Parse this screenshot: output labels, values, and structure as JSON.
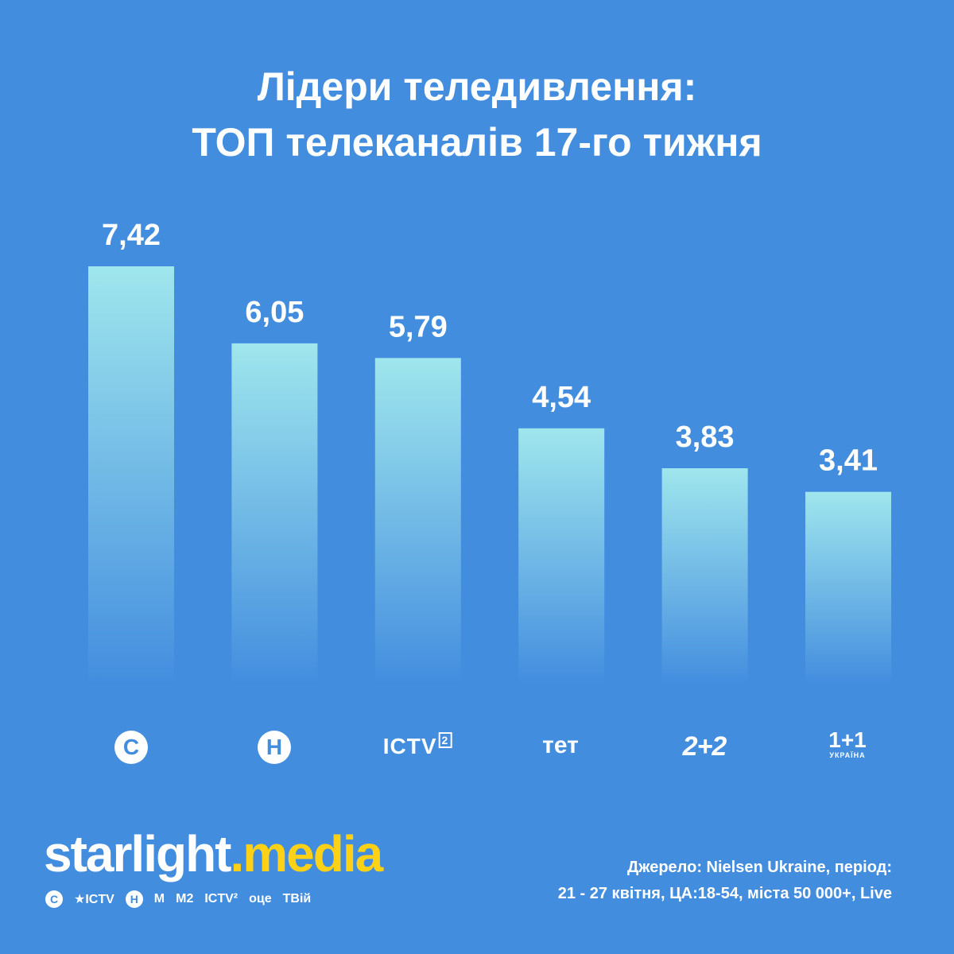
{
  "title": {
    "line1": "Лідери теледивлення:",
    "line2": "ТОП телеканалів 17-го тижня"
  },
  "chart_data": {
    "type": "bar",
    "categories": [
      "СТБ",
      "Новий канал",
      "ICTV2",
      "ТЕТ",
      "2+2",
      "1+1 Україна"
    ],
    "values": [
      7.42,
      6.05,
      5.79,
      4.54,
      3.83,
      3.41
    ],
    "value_labels": [
      "7,42",
      "6,05",
      "5,79",
      "4,54",
      "3,83",
      "3,41"
    ],
    "bar_gradient": [
      "#9fe6ed",
      "#438ddf"
    ],
    "ylim": [
      0,
      7.42
    ],
    "grid": false,
    "legend": "none"
  },
  "logos": {
    "c_glyph": "C",
    "h_glyph": "Н",
    "ictv": "ICTV",
    "ictv_sup": "2",
    "tet": "тет",
    "two_plus_two": "2+2",
    "one_plus_one": "1+1",
    "one_plus_one_sub": "УКРАЇНА"
  },
  "brand": {
    "part1": "starlight",
    "dot": ".",
    "part2": "media",
    "channels": [
      "С",
      "★ICTV",
      "Н",
      "М",
      "М2",
      "ICTV²",
      "оце",
      "ТВій"
    ]
  },
  "source": {
    "line1": "Джерело: Nielsen Ukraine, період:",
    "line2": "21 - 27 квітня, ЦА:18-54, міста 50 000+, Live"
  },
  "colors": {
    "background": "#438ddf",
    "accent": "#fcd116",
    "text": "#ffffff"
  }
}
